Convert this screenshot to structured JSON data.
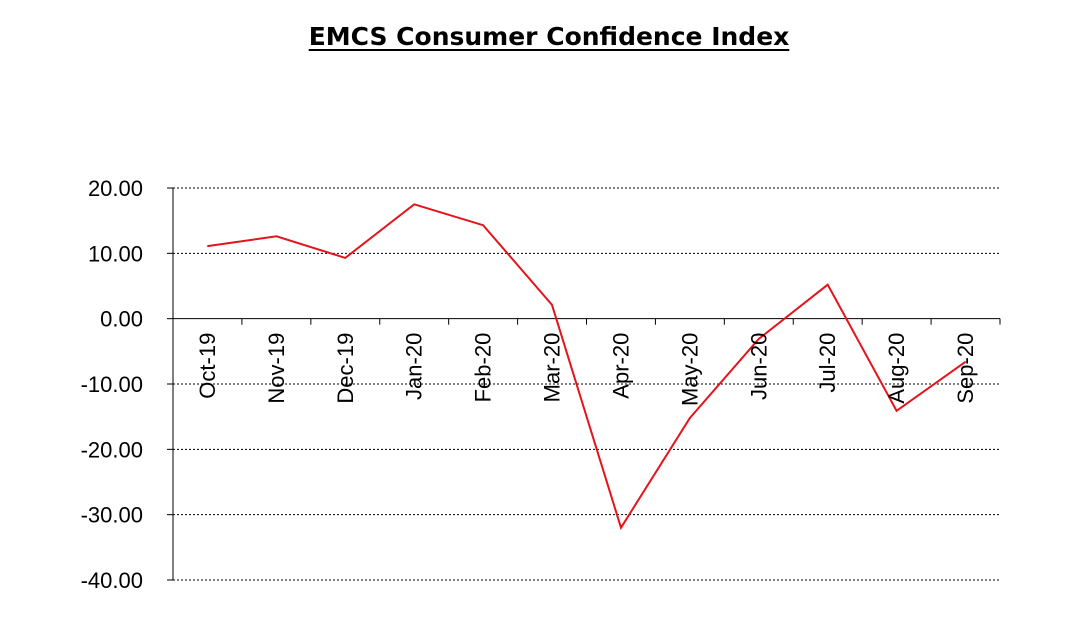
{
  "chart_data": {
    "type": "line",
    "title": "EMCS Consumer Confidence Index",
    "xlabel": "",
    "ylabel": "",
    "categories": [
      "Oct-19",
      "Nov-19",
      "Dec-19",
      "Jan-20",
      "Feb-20",
      "Mar-20",
      "Apr-20",
      "May-20",
      "Jun-20",
      "Jul-20",
      "Aug-20",
      "Sep-20"
    ],
    "series": [
      {
        "name": "",
        "color": "#e3141b",
        "values": [
          11.1,
          12.6,
          9.3,
          17.5,
          14.3,
          2.1,
          -32.0,
          -15.2,
          -3.1,
          5.2,
          -14.1,
          -6.6
        ]
      }
    ],
    "ylim": [
      -40,
      20
    ],
    "yticks": [
      20,
      10,
      0,
      -10,
      -20,
      -30,
      -40
    ],
    "ytick_labels": [
      "20.00",
      "10.00",
      "0.00",
      "-10.00",
      "-20.00",
      "-30.00",
      "-40.00"
    ],
    "grid": true,
    "grid_style": "dotted",
    "legend": "none"
  }
}
